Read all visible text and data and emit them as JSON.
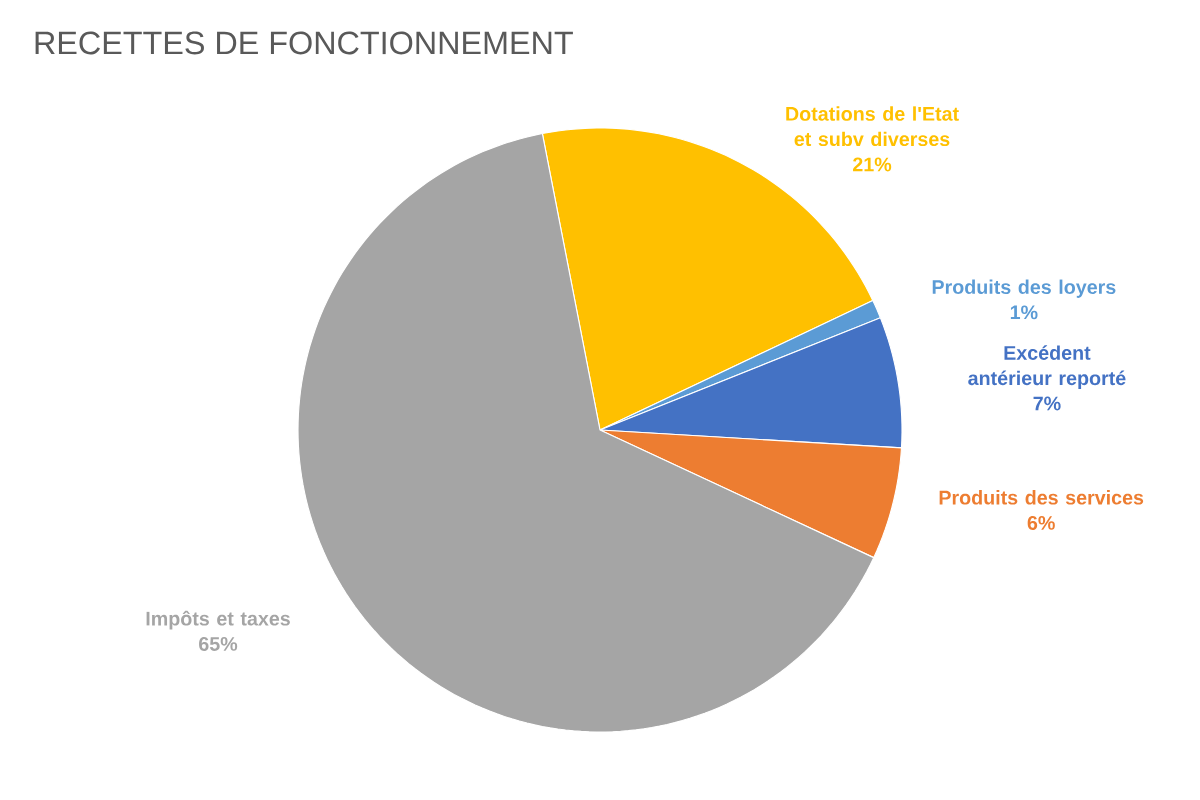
{
  "chart_data": {
    "type": "pie",
    "title": "RECETTES DE FONCTIONNEMENT",
    "categories": [
      "Dotations de l'Etat et subv diverses",
      "Produits des loyers",
      "Excédent antérieur reporté",
      "Produits des services",
      "Impôts et taxes"
    ],
    "values": [
      21,
      1,
      7,
      6,
      65
    ],
    "value_labels": [
      "21%",
      "1%",
      "7%",
      "6%",
      "65%"
    ],
    "colors": [
      "#ffc000",
      "#5b9bd5",
      "#4472c4",
      "#ed7d31",
      "#a5a5a5"
    ]
  }
}
